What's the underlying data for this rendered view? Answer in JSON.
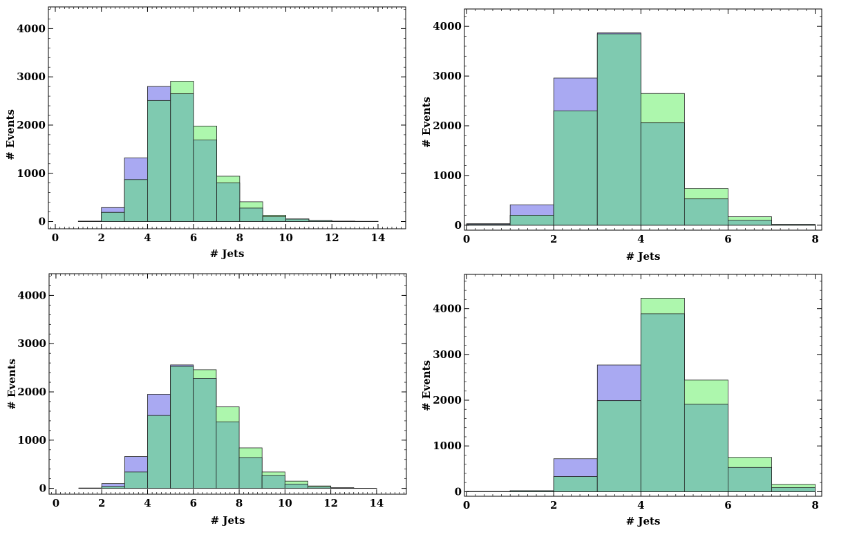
{
  "chart_data": [
    {
      "type": "bar",
      "title": "",
      "xlabel": "# Jets",
      "ylabel": "# Events",
      "xlim": [
        -0.3,
        15.2
      ],
      "ylim": [
        -150,
        4450
      ],
      "xticks": [
        0,
        2,
        4,
        6,
        8,
        10,
        12,
        14
      ],
      "yticks": [
        0,
        1000,
        2000,
        3000,
        4000
      ],
      "bin_width": 1,
      "bin_starts": [
        1,
        2,
        3,
        4,
        5,
        6,
        7,
        8,
        9,
        10,
        11,
        12,
        13
      ],
      "series": [
        {
          "name": "blue",
          "color": "#a9a9f2",
          "values": [
            5,
            290,
            1320,
            2800,
            2650,
            1690,
            800,
            280,
            100,
            50,
            20,
            8,
            3
          ]
        },
        {
          "name": "green",
          "color": "#adf7ad",
          "values": [
            8,
            190,
            870,
            2510,
            2910,
            1980,
            940,
            410,
            130,
            55,
            20,
            8,
            3
          ]
        }
      ]
    },
    {
      "type": "bar",
      "title": "",
      "xlabel": "# Jets",
      "ylabel": "# Events",
      "xlim": [
        -0.05,
        8.15
      ],
      "ylim": [
        -100,
        4350
      ],
      "xticks": [
        0,
        2,
        4,
        6,
        8
      ],
      "yticks": [
        0,
        1000,
        2000,
        3000,
        4000
      ],
      "bin_width": 1,
      "bin_starts": [
        0,
        1,
        2,
        3,
        4,
        5,
        6,
        7
      ],
      "series": [
        {
          "name": "blue",
          "color": "#a9a9f2",
          "values": [
            30,
            410,
            2960,
            3870,
            2060,
            530,
            100,
            15
          ]
        },
        {
          "name": "green",
          "color": "#adf7ad",
          "values": [
            15,
            200,
            2300,
            3850,
            2650,
            740,
            170,
            15
          ]
        }
      ]
    },
    {
      "type": "bar",
      "title": "",
      "xlabel": "# Jets",
      "ylabel": "# Events",
      "xlim": [
        -0.3,
        15.3
      ],
      "ylim": [
        -120,
        4450
      ],
      "xticks": [
        0,
        2,
        4,
        6,
        8,
        10,
        12,
        14
      ],
      "yticks": [
        0,
        1000,
        2000,
        3000,
        4000
      ],
      "bin_width": 1,
      "bin_starts": [
        1,
        2,
        3,
        4,
        5,
        6,
        7,
        8,
        9,
        10,
        11,
        12,
        13
      ],
      "series": [
        {
          "name": "blue",
          "color": "#a9a9f2",
          "values": [
            5,
            100,
            660,
            1950,
            2560,
            2280,
            1380,
            640,
            270,
            90,
            30,
            10,
            3
          ]
        },
        {
          "name": "green",
          "color": "#adf7ad",
          "values": [
            5,
            40,
            340,
            1510,
            2530,
            2460,
            1690,
            840,
            340,
            150,
            50,
            15,
            3
          ]
        }
      ]
    },
    {
      "type": "bar",
      "title": "",
      "xlabel": "# Jets",
      "ylabel": "# Events",
      "xlim": [
        -0.05,
        8.15
      ],
      "ylim": [
        -100,
        4750
      ],
      "xticks": [
        0,
        2,
        4,
        6,
        8
      ],
      "yticks": [
        0,
        1000,
        2000,
        3000,
        4000
      ],
      "bin_width": 1,
      "bin_starts": [
        0,
        1,
        2,
        3,
        4,
        5,
        6,
        7
      ],
      "series": [
        {
          "name": "blue",
          "color": "#a9a9f2",
          "values": [
            3,
            20,
            720,
            2770,
            3890,
            1910,
            530,
            90
          ]
        },
        {
          "name": "green",
          "color": "#adf7ad",
          "values": [
            3,
            20,
            330,
            1990,
            4230,
            2440,
            750,
            160
          ]
        }
      ]
    }
  ]
}
